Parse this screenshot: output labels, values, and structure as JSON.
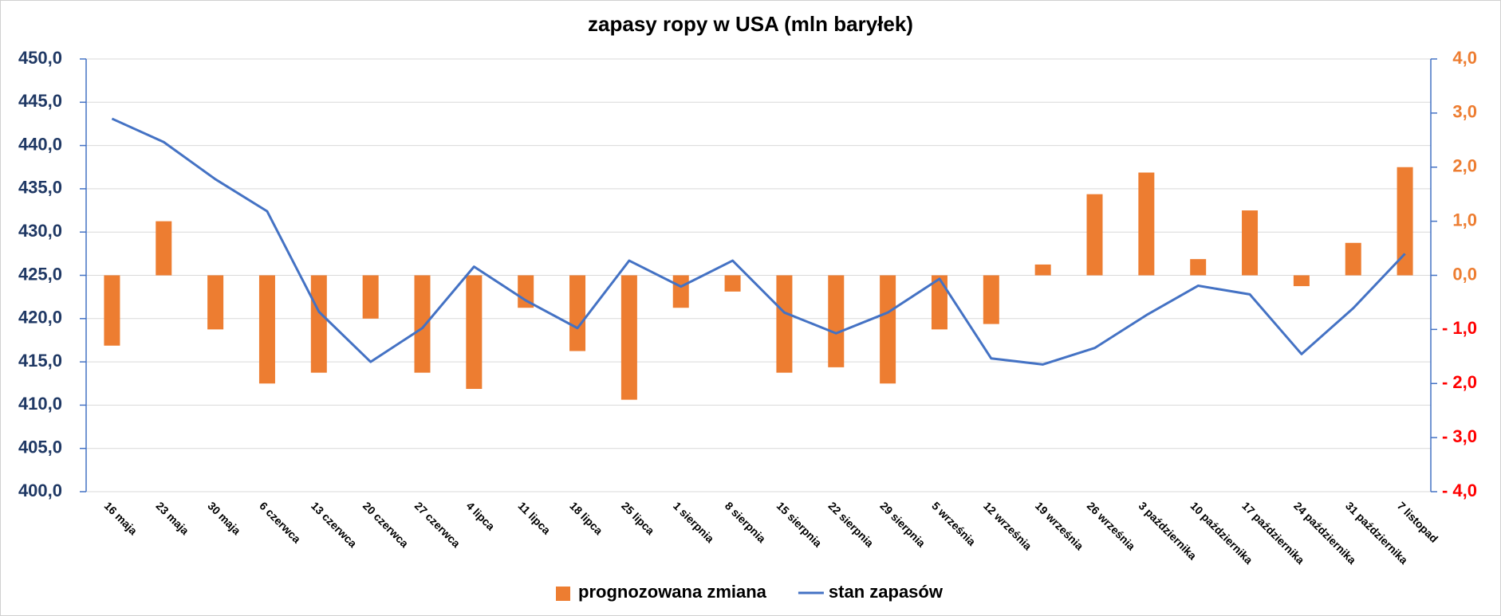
{
  "chart_data": {
    "type": "bar_line",
    "title": "zapasy ropy w USA (mln baryłek)",
    "categories": [
      "16 maja",
      "23 maja",
      "30 maja",
      "6 czerwca",
      "13 czerwca",
      "20 czerwca",
      "27 czerwca",
      "4 lipca",
      "11 lipca",
      "18 lipca",
      "25 lipca",
      "1 sierpnia",
      "8 sierpnia",
      "15 sierpnia",
      "22 sierpnia",
      "29 sierpnia",
      "5 września",
      "12 września",
      "19 września",
      "26 września",
      "3 października",
      "10 października",
      "17 października",
      "24 października",
      "31 października",
      "7 listopad"
    ],
    "series": [
      {
        "name": "prognozowana zmiana",
        "type": "bar",
        "axis": "y2",
        "color": "#ed7d31",
        "values": [
          -1.3,
          1.0,
          -1.0,
          -2.0,
          -1.8,
          -0.8,
          -1.8,
          -2.1,
          -0.6,
          -1.4,
          -2.3,
          -0.6,
          -0.3,
          -1.8,
          -1.7,
          -2.0,
          -1.0,
          -0.9,
          0.2,
          1.5,
          1.9,
          0.3,
          1.2,
          -0.2,
          0.6,
          2.0
        ]
      },
      {
        "name": "stan zapasów",
        "type": "line",
        "axis": "y",
        "color": "#4472c4",
        "values": [
          443.1,
          440.4,
          436.1,
          432.4,
          420.8,
          415.0,
          418.9,
          426.0,
          422.1,
          418.9,
          426.7,
          423.7,
          426.7,
          420.7,
          418.3,
          420.7,
          424.6,
          415.4,
          414.7,
          416.6,
          420.4,
          423.8,
          422.8,
          415.9,
          421.2,
          427.5
        ]
      }
    ],
    "ylim": [
      400,
      450
    ],
    "yticks": [
      {
        "value": 400,
        "label": "400,0"
      },
      {
        "value": 405,
        "label": "405,0"
      },
      {
        "value": 410,
        "label": "410,0"
      },
      {
        "value": 415,
        "label": "415,0"
      },
      {
        "value": 420,
        "label": "420,0"
      },
      {
        "value": 425,
        "label": "425,0"
      },
      {
        "value": 430,
        "label": "430,0"
      },
      {
        "value": 435,
        "label": "435,0"
      },
      {
        "value": 440,
        "label": "440,0"
      },
      {
        "value": 445,
        "label": "445,0"
      },
      {
        "value": 450,
        "label": "450,0"
      }
    ],
    "y2lim": [
      -4,
      4
    ],
    "y2ticks": [
      {
        "value": -4,
        "label": "- 4,0"
      },
      {
        "value": -3,
        "label": "- 3,0"
      },
      {
        "value": -2,
        "label": "- 2,0"
      },
      {
        "value": -1,
        "label": "- 1,0"
      },
      {
        "value": 0,
        "label": "0,0"
      },
      {
        "value": 1,
        "label": "1,0"
      },
      {
        "value": 2,
        "label": "2,0"
      },
      {
        "value": 3,
        "label": "3,0"
      },
      {
        "value": 4,
        "label": "4,0"
      }
    ],
    "y2tick_color": "#ed7d31",
    "y2tick_negative_color": "#ff0000",
    "ytick_color": "#1f3864",
    "grid": true,
    "legend": "bottom"
  }
}
